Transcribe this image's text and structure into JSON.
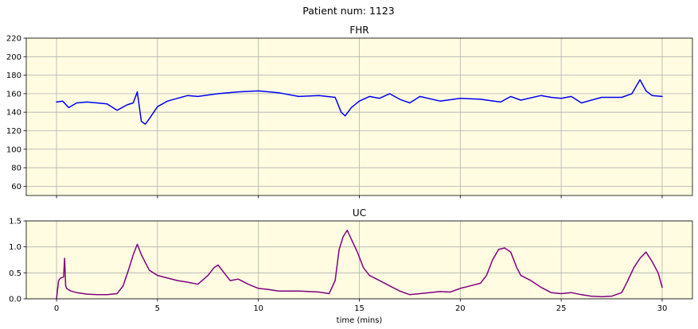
{
  "figure": {
    "suptitle": "Patient num: 1123",
    "background": "#ffffff",
    "axes_face": "#fffce1",
    "grid_color": "#b0b0b0"
  },
  "chart_data": [
    {
      "type": "line",
      "title": "FHR",
      "xlabel": "",
      "ylabel": "",
      "xlim": [
        -1.5,
        31.5
      ],
      "ylim": [
        50,
        220
      ],
      "xticks": [
        0,
        5,
        10,
        15,
        20,
        25,
        30
      ],
      "xtick_labels": [
        "",
        "",
        "",
        "",
        "",
        "",
        ""
      ],
      "yticks": [
        60,
        80,
        100,
        120,
        140,
        160,
        180,
        200,
        220
      ],
      "ytick_labels": [
        "60",
        "80",
        "100",
        "120",
        "140",
        "160",
        "180",
        "200",
        "220"
      ],
      "grid": true,
      "series": [
        {
          "name": "FHR",
          "color": "#0000ee",
          "x": [
            0,
            0.3,
            0.6,
            1,
            1.5,
            2,
            2.5,
            3,
            3.5,
            3.8,
            4,
            4.2,
            4.4,
            4.6,
            5,
            5.5,
            6,
            6.5,
            7,
            8,
            9,
            10,
            11,
            12,
            13,
            13.8,
            14.1,
            14.3,
            14.6,
            15,
            15.5,
            16,
            16.5,
            17,
            17.5,
            18,
            19,
            20,
            21,
            22,
            22.5,
            23,
            24,
            24.5,
            25,
            25.5,
            26,
            27,
            28,
            28.5,
            28.9,
            29.2,
            29.5,
            30
          ],
          "values": [
            151,
            152,
            145,
            150,
            151,
            150,
            149,
            142,
            148,
            150,
            162,
            130,
            127,
            133,
            146,
            152,
            155,
            158,
            157,
            160,
            162,
            163,
            161,
            157,
            158,
            156,
            140,
            136,
            145,
            152,
            157,
            155,
            160,
            154,
            150,
            157,
            152,
            155,
            154,
            151,
            157,
            153,
            158,
            156,
            155,
            157,
            150,
            156,
            156,
            160,
            175,
            163,
            158,
            157
          ]
        }
      ]
    },
    {
      "type": "line",
      "title": "UC",
      "xlabel": "time (mins)",
      "ylabel": "",
      "xlim": [
        -1.5,
        31.5
      ],
      "ylim": [
        0,
        1.5
      ],
      "xticks": [
        0,
        5,
        10,
        15,
        20,
        25,
        30
      ],
      "xtick_labels": [
        "0",
        "5",
        "10",
        "15",
        "20",
        "25",
        "30"
      ],
      "yticks": [
        0,
        0.5,
        1,
        1.5
      ],
      "ytick_labels": [
        "0.0",
        "0.5",
        "1.0",
        "1.5"
      ],
      "grid": true,
      "series": [
        {
          "name": "UC",
          "color": "#800080",
          "x": [
            0,
            0.1,
            0.2,
            0.35,
            0.4,
            0.45,
            0.5,
            0.7,
            1,
            1.5,
            2,
            2.5,
            3,
            3.3,
            3.6,
            3.8,
            4,
            4.2,
            4.4,
            4.6,
            5,
            5.5,
            6,
            6.5,
            7,
            7.5,
            7.8,
            8,
            8.3,
            8.6,
            9,
            9.5,
            10,
            10.5,
            11,
            12,
            13,
            13.5,
            13.8,
            14,
            14.2,
            14.4,
            14.6,
            14.9,
            15.2,
            15.5,
            16,
            16.5,
            17,
            17.5,
            18,
            19,
            19.5,
            20,
            20.5,
            21,
            21.3,
            21.6,
            21.9,
            22.2,
            22.5,
            22.8,
            23,
            23.5,
            24,
            24.5,
            25,
            25.5,
            26,
            26.5,
            27,
            27.5,
            28,
            28.3,
            28.6,
            28.9,
            29.2,
            29.5,
            29.8,
            30
          ],
          "values": [
            0,
            0.35,
            0.4,
            0.42,
            0.78,
            0.25,
            0.2,
            0.15,
            0.12,
            0.09,
            0.08,
            0.08,
            0.1,
            0.25,
            0.6,
            0.85,
            1.05,
            0.85,
            0.7,
            0.55,
            0.45,
            0.4,
            0.35,
            0.32,
            0.28,
            0.45,
            0.6,
            0.65,
            0.5,
            0.35,
            0.38,
            0.28,
            0.2,
            0.18,
            0.15,
            0.15,
            0.13,
            0.1,
            0.35,
            0.95,
            1.2,
            1.32,
            1.15,
            0.9,
            0.6,
            0.45,
            0.35,
            0.25,
            0.15,
            0.08,
            0.1,
            0.14,
            0.13,
            0.2,
            0.25,
            0.3,
            0.45,
            0.75,
            0.95,
            0.98,
            0.9,
            0.6,
            0.45,
            0.35,
            0.22,
            0.12,
            0.1,
            0.12,
            0.08,
            0.05,
            0.04,
            0.05,
            0.12,
            0.35,
            0.6,
            0.78,
            0.9,
            0.72,
            0.5,
            0.22
          ]
        }
      ]
    }
  ]
}
